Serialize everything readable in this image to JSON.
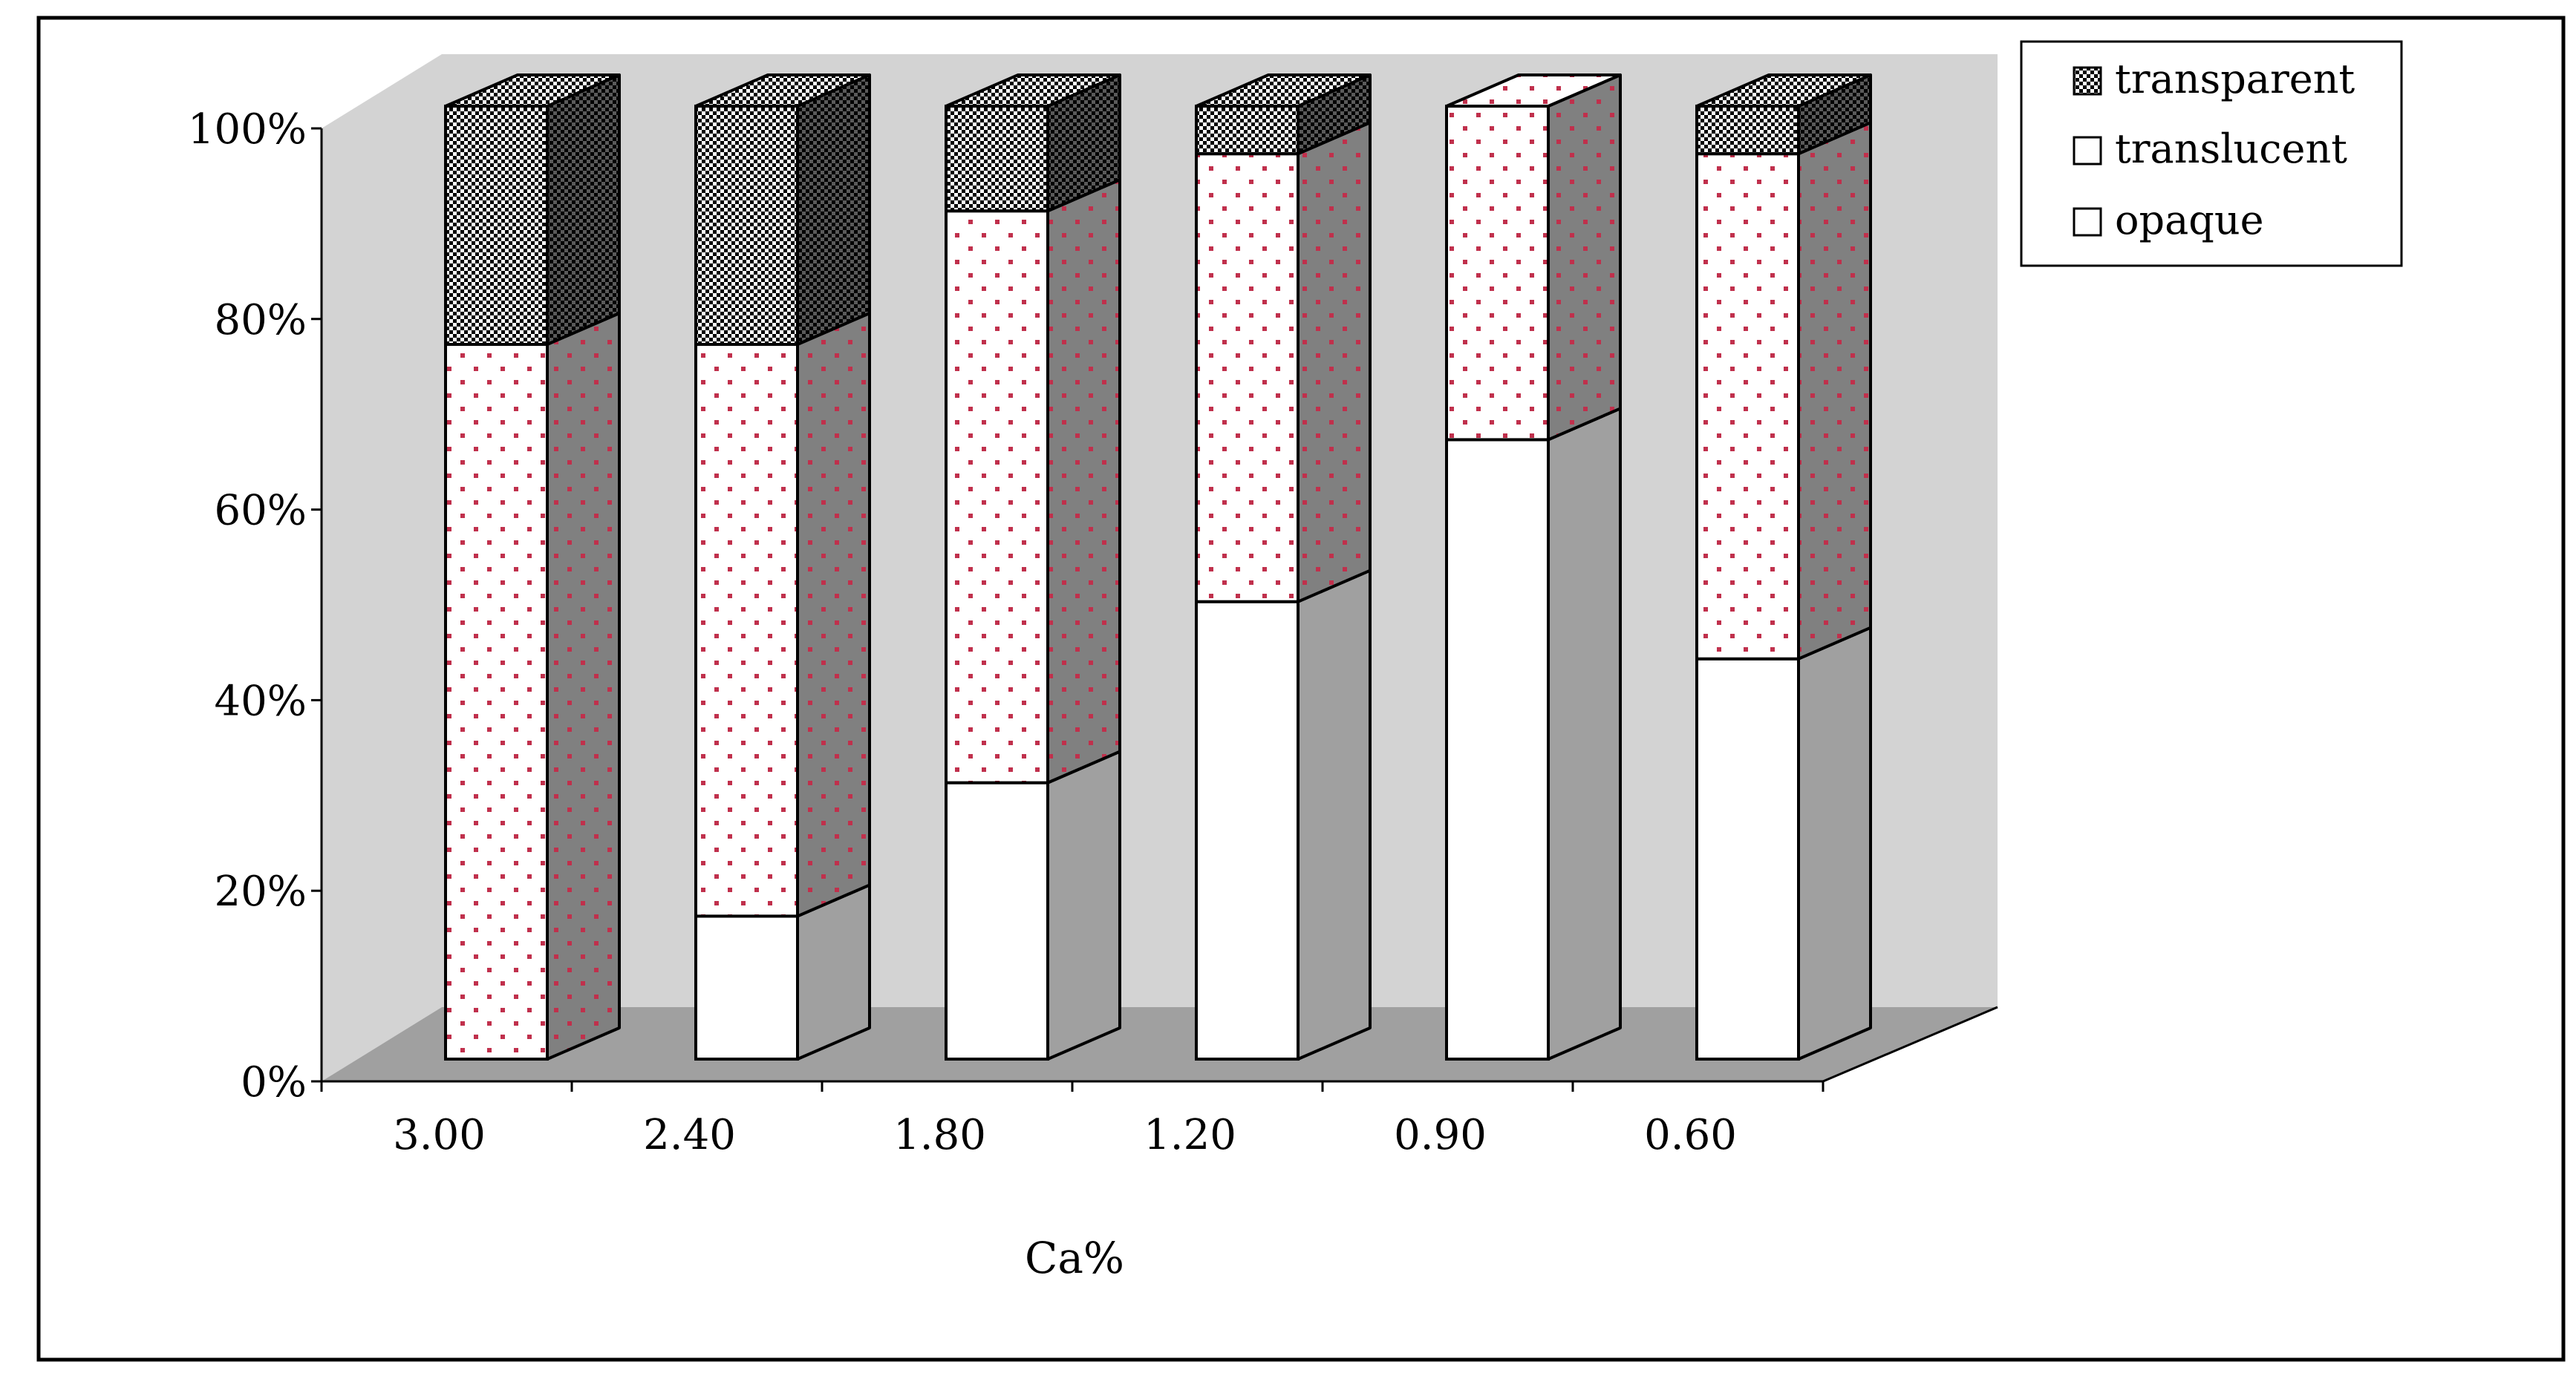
{
  "chart_data": {
    "type": "bar",
    "stacked": true,
    "three_d": true,
    "categories": [
      "3.00",
      "2.40",
      "1.80",
      "1.20",
      "0.90",
      "0.60"
    ],
    "series": [
      {
        "name": "opaque",
        "values": [
          0,
          15,
          29,
          48,
          65,
          42
        ],
        "pattern": "plain"
      },
      {
        "name": "translucent",
        "values": [
          75,
          60,
          60,
          47,
          35,
          53
        ],
        "pattern": "dots"
      },
      {
        "name": "transparent",
        "values": [
          25,
          25,
          11,
          5,
          0,
          5
        ],
        "pattern": "checker"
      }
    ],
    "y_ticks": [
      "0%",
      "20%",
      "40%",
      "60%",
      "80%",
      "100%"
    ],
    "ylim": [
      0,
      100
    ],
    "xlabel": "Ca%",
    "ylabel": "",
    "title": "",
    "legend_order": [
      "transparent",
      "translucent",
      "opaque"
    ],
    "legend_position": "top-right",
    "grid": false,
    "colors": {
      "wall": "#d3d3d3",
      "floor": "#a0a0a0",
      "front_face": "#ffffff",
      "side_face": "#a0a0a0",
      "side_face_dots": "#808080",
      "dot_color": "#c0304c",
      "outline": "#000000"
    }
  }
}
